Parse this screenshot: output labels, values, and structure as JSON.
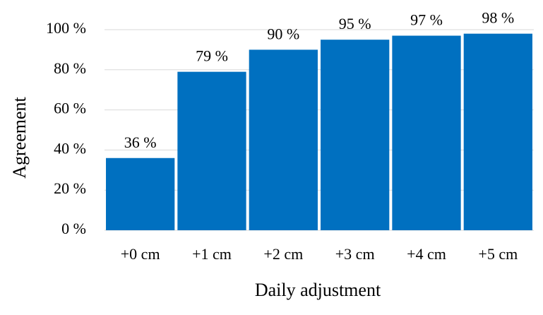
{
  "chart_data": {
    "type": "bar",
    "x_label": "Daily adjustment",
    "y_label": "Agreement",
    "categories": [
      "+0 cm",
      "+1 cm",
      "+2 cm",
      "+3 cm",
      "+4 cm",
      "+5 cm"
    ],
    "values": [
      36,
      79,
      90,
      95,
      97,
      98
    ],
    "value_labels": [
      "36 %",
      "79 %",
      "90 %",
      "95 %",
      "97 %",
      "98 %"
    ],
    "color": "#0070c0",
    "ylim": [
      0,
      100
    ],
    "yticks": [
      {
        "value": 0,
        "label": "0 %"
      },
      {
        "value": 20,
        "label": "20 %"
      },
      {
        "value": 40,
        "label": "40 %"
      },
      {
        "value": 60,
        "label": "60 %"
      },
      {
        "value": 80,
        "label": "80 %"
      },
      {
        "value": 100,
        "label": "100 %"
      }
    ],
    "grid": true
  }
}
